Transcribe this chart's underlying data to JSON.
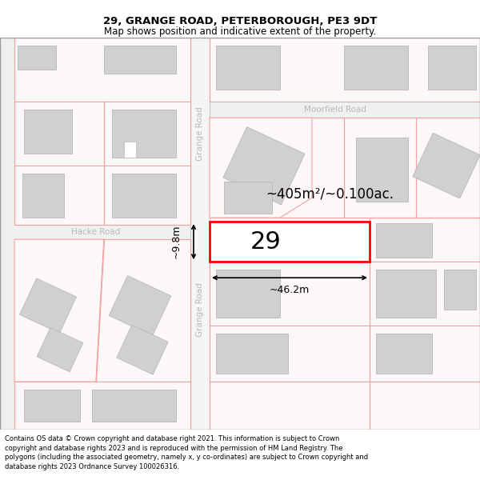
{
  "title_line1": "29, GRANGE ROAD, PETERBOROUGH, PE3 9DT",
  "title_line2": "Map shows position and indicative extent of the property.",
  "footer_text": "Contains OS data © Crown copyright and database right 2021. This information is subject to Crown copyright and database rights 2023 and is reproduced with the permission of HM Land Registry. The polygons (including the associated geometry, namely x, y co-ordinates) are subject to Crown copyright and database rights 2023 Ordnance Survey 100026316.",
  "property_number": "29",
  "area_label": "~405m²/~0.100ac.",
  "width_label": "~46.2m",
  "height_label": "~9.8m",
  "road_label_upper": "Grange Road",
  "road_label_lower": "Grange Road",
  "road_label_moor": "Moorfield Road",
  "road_label_hacke": "Hacke Road",
  "map_bg": "#ffffff",
  "bg_left_tint": "#f0f2f0",
  "property_border_red": "#ff0000",
  "plot_line_color": "#f5a0a0",
  "building_gray": "#d0d0d0",
  "road_text_color": "#b0b0b0",
  "dim_color": "#000000"
}
